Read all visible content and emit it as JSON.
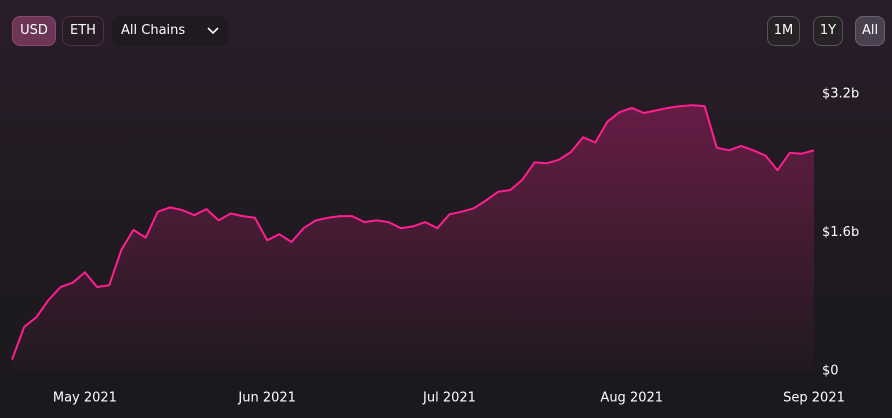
{
  "toolbar": {
    "currency": [
      "USD",
      "ETH"
    ],
    "chain": "All Chains",
    "ranges": [
      "1M",
      "1Y",
      "All"
    ]
  },
  "chart_data": {
    "type": "area",
    "categories": [
      null,
      null,
      null,
      null,
      null,
      null,
      "May 2021",
      null,
      null,
      null,
      null,
      null,
      null,
      null,
      null,
      null,
      null,
      null,
      null,
      null,
      null,
      "Jun 2021",
      null,
      null,
      null,
      null,
      null,
      null,
      null,
      null,
      null,
      null,
      null,
      null,
      null,
      null,
      "Jul 2021",
      null,
      null,
      null,
      null,
      null,
      null,
      null,
      null,
      null,
      null,
      null,
      null,
      null,
      null,
      "Aug 2021",
      null,
      null,
      null,
      null,
      null,
      null,
      null,
      null,
      null,
      null,
      null,
      null,
      null,
      null,
      "Sep 2021"
    ],
    "values": [
      0.13,
      0.51,
      0.62,
      0.82,
      0.97,
      1.02,
      1.14,
      0.97,
      0.99,
      1.4,
      1.63,
      1.54,
      1.84,
      1.89,
      1.86,
      1.8,
      1.87,
      1.74,
      1.82,
      1.79,
      1.77,
      1.51,
      1.58,
      1.49,
      1.65,
      1.74,
      1.77,
      1.79,
      1.79,
      1.72,
      1.74,
      1.72,
      1.65,
      1.67,
      1.72,
      1.65,
      1.81,
      1.84,
      1.88,
      1.97,
      2.07,
      2.09,
      2.21,
      2.41,
      2.4,
      2.44,
      2.53,
      2.7,
      2.64,
      2.88,
      2.99,
      3.04,
      2.98,
      3.01,
      3.04,
      3.06,
      3.07,
      3.06,
      2.58,
      2.55,
      2.6,
      2.55,
      2.49,
      2.32,
      2.52,
      2.51,
      2.55
    ],
    "color": "#ff1f8e",
    "ylim": [
      0,
      3.2
    ],
    "yticks": [
      {
        "value": 0,
        "label": "$0"
      },
      {
        "value": 1.6,
        "label": "$1.6b"
      },
      {
        "value": 3.2,
        "label": "$3.2b"
      }
    ]
  }
}
